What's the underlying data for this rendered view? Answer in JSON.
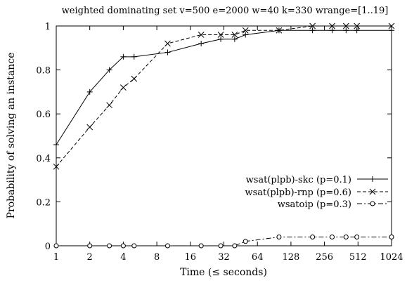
{
  "chart_data": {
    "type": "line",
    "title": "weighted dominating set v=500 e=2000 w=40 k=330 wrange=[1..19]",
    "xlabel": "Time (≤ seconds)",
    "ylabel": "Probability of solving an instance",
    "x_scale": "log2",
    "xlim": [
      1,
      1024
    ],
    "ylim": [
      0,
      1
    ],
    "x_ticks": [
      1,
      2,
      4,
      8,
      16,
      32,
      64,
      128,
      256,
      512,
      1024
    ],
    "x_tick_labels": [
      "1",
      "2",
      "4",
      "8",
      "16",
      "32",
      "64",
      "128",
      "256",
      "512",
      "1024"
    ],
    "y_ticks": [
      0,
      0.2,
      0.4,
      0.6,
      0.8,
      1
    ],
    "y_tick_labels": [
      "0",
      "0.2",
      "0.4",
      "0.6",
      "0.8",
      "1"
    ],
    "grid": false,
    "legend_position": "bottom-right",
    "series": [
      {
        "name": "wsat(plpb)-skc (p=0.1)",
        "marker": "plus",
        "dash": "solid",
        "points": [
          [
            1,
            0.46
          ],
          [
            2,
            0.7
          ],
          [
            3,
            0.8
          ],
          [
            4,
            0.86
          ],
          [
            5,
            0.86
          ],
          [
            10,
            0.88
          ],
          [
            20,
            0.92
          ],
          [
            30,
            0.94
          ],
          [
            40,
            0.94
          ],
          [
            50,
            0.96
          ],
          [
            100,
            0.98
          ],
          [
            200,
            0.98
          ],
          [
            300,
            0.98
          ],
          [
            400,
            0.98
          ],
          [
            500,
            0.98
          ],
          [
            1024,
            0.98
          ]
        ]
      },
      {
        "name": "wsat(plpb)-rnp (p=0.6)",
        "marker": "cross",
        "dash": "dashed",
        "points": [
          [
            1,
            0.36
          ],
          [
            2,
            0.54
          ],
          [
            3,
            0.64
          ],
          [
            4,
            0.72
          ],
          [
            5,
            0.76
          ],
          [
            10,
            0.92
          ],
          [
            20,
            0.96
          ],
          [
            30,
            0.96
          ],
          [
            40,
            0.96
          ],
          [
            50,
            0.98
          ],
          [
            100,
            0.98
          ],
          [
            200,
            1.0
          ],
          [
            300,
            1.0
          ],
          [
            400,
            1.0
          ],
          [
            500,
            1.0
          ],
          [
            1024,
            1.0
          ]
        ]
      },
      {
        "name": "wsatoip (p=0.3)",
        "marker": "circle",
        "dash": "dashdot",
        "points": [
          [
            1,
            0.0
          ],
          [
            2,
            0.0
          ],
          [
            3,
            0.0
          ],
          [
            4,
            0.0
          ],
          [
            5,
            0.0
          ],
          [
            10,
            0.0
          ],
          [
            20,
            0.0
          ],
          [
            30,
            0.0
          ],
          [
            40,
            0.0
          ],
          [
            50,
            0.02
          ],
          [
            100,
            0.04
          ],
          [
            200,
            0.04
          ],
          [
            300,
            0.04
          ],
          [
            400,
            0.04
          ],
          [
            500,
            0.04
          ],
          [
            1024,
            0.04
          ]
        ]
      }
    ]
  }
}
